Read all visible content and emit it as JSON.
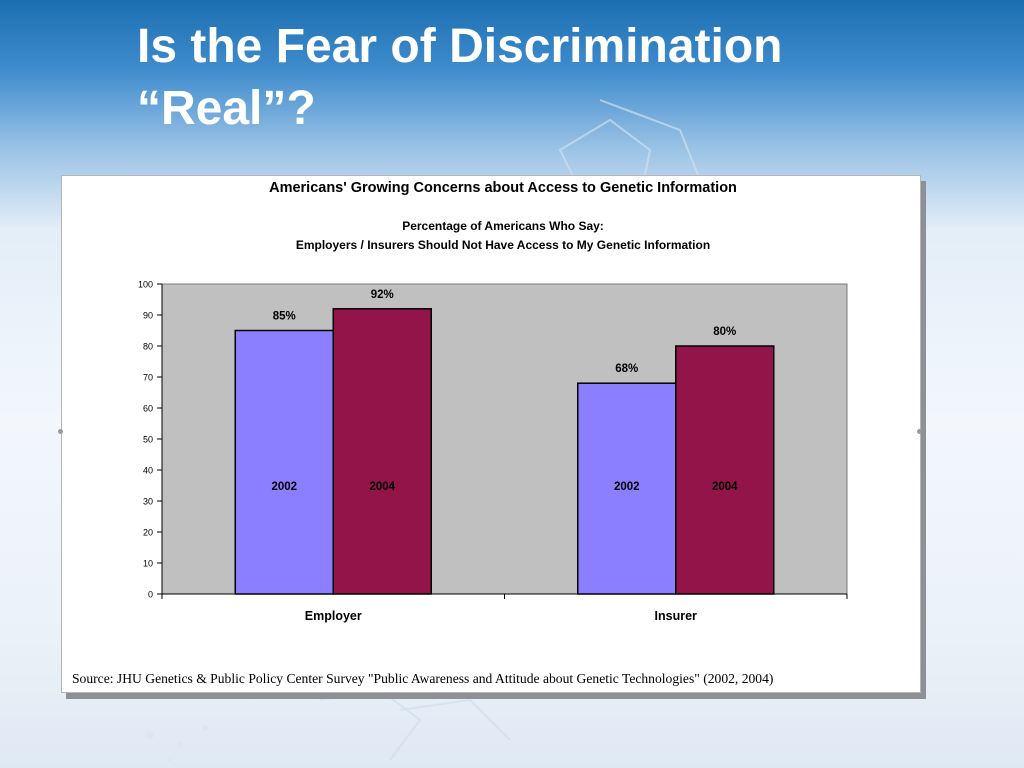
{
  "slide": {
    "title_line1": "Is the Fear of Discrimination",
    "title_line2": "“Real”?"
  },
  "colors": {
    "series_2002": "#8c7fff",
    "series_2004": "#921449",
    "plot_background": "#c0c0c0"
  },
  "chart_data": {
    "type": "bar",
    "title": "Americans' Growing Concerns about Access to Genetic Information",
    "subtitle_line1": "Percentage of Americans Who Say:",
    "subtitle_line2": "Employers / Insurers Should Not Have Access to My Genetic Information",
    "categories": [
      "Employer",
      "Insurer"
    ],
    "series": [
      {
        "name": "2002",
        "values": [
          85,
          68
        ],
        "labels": [
          "85%",
          "68%"
        ]
      },
      {
        "name": "2004",
        "values": [
          92,
          80
        ],
        "labels": [
          "92%",
          "80%"
        ]
      }
    ],
    "ylim": [
      0,
      100
    ],
    "yticks": [
      0,
      10,
      20,
      30,
      40,
      50,
      60,
      70,
      80,
      90,
      100
    ],
    "xlabel": "",
    "ylabel": "",
    "grid": false,
    "legend": "none (series names printed inside bars)"
  },
  "source": "Source: JHU Genetics & Public Policy Center Survey \"Public Awareness and Attitude about Genetic Technologies\" (2002, 2004)"
}
